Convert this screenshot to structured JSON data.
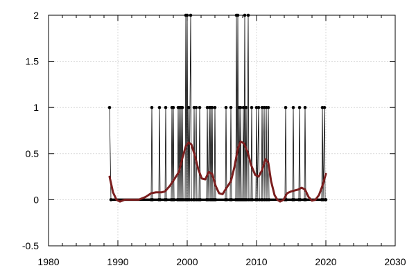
{
  "chart_data": {
    "type": "line",
    "title": "",
    "xlabel": "",
    "ylabel": "",
    "xlim": [
      1980,
      2030
    ],
    "ylim": [
      -0.5,
      2
    ],
    "grid": true,
    "legend": "none",
    "x_ticks": [
      1980,
      1990,
      2000,
      2010,
      2020,
      2030
    ],
    "y_ticks": [
      -0.5,
      0,
      0.5,
      1,
      1.5,
      2
    ],
    "x_tick_labels": [
      "1980",
      "1990",
      "2000",
      "2010",
      "2020",
      "2030"
    ],
    "y_tick_labels": [
      "-0.5",
      "0",
      "0.5",
      "1",
      "1.5",
      "2"
    ],
    "colors": {
      "series": "#000000",
      "smooth": "#7b1e1e",
      "grid": "#d8d8d8"
    },
    "series": [
      {
        "points": [
          [
            1988.8,
            1
          ],
          [
            1989.0,
            0
          ],
          [
            1994.8,
            0
          ],
          [
            1994.9,
            1
          ],
          [
            1995.0,
            0
          ],
          [
            1995.9,
            0
          ],
          [
            1996.0,
            1
          ],
          [
            1996.1,
            0
          ],
          [
            1996.8,
            0
          ],
          [
            1996.9,
            1
          ],
          [
            1997.0,
            0
          ],
          [
            1997.7,
            0
          ],
          [
            1997.8,
            1
          ],
          [
            1997.9,
            0
          ],
          [
            1998.0,
            1
          ],
          [
            1998.1,
            0
          ],
          [
            1998.6,
            0
          ],
          [
            1998.7,
            1
          ],
          [
            1998.8,
            0
          ],
          [
            1998.9,
            1
          ],
          [
            1999.0,
            0
          ],
          [
            1999.1,
            1
          ],
          [
            1999.2,
            0
          ],
          [
            1999.3,
            1
          ],
          [
            1999.4,
            0
          ],
          [
            1999.7,
            0
          ],
          [
            1999.8,
            2
          ],
          [
            1999.9,
            0
          ],
          [
            2000.0,
            2
          ],
          [
            2000.1,
            0
          ],
          [
            2000.2,
            1
          ],
          [
            2000.3,
            0
          ],
          [
            2000.5,
            2
          ],
          [
            2000.6,
            0
          ],
          [
            2000.9,
            0
          ],
          [
            2001.0,
            1
          ],
          [
            2001.1,
            0
          ],
          [
            2001.3,
            1
          ],
          [
            2001.4,
            0
          ],
          [
            2001.7,
            0
          ],
          [
            2001.8,
            1
          ],
          [
            2001.9,
            0
          ],
          [
            2002.8,
            0
          ],
          [
            2002.9,
            1
          ],
          [
            2003.0,
            0
          ],
          [
            2003.2,
            1
          ],
          [
            2003.3,
            0
          ],
          [
            2003.4,
            1
          ],
          [
            2003.5,
            0
          ],
          [
            2003.6,
            1
          ],
          [
            2003.7,
            0
          ],
          [
            2003.9,
            0
          ],
          [
            2004.0,
            1
          ],
          [
            2004.1,
            0
          ],
          [
            2005.5,
            0
          ],
          [
            2005.6,
            1
          ],
          [
            2005.7,
            0
          ],
          [
            2006.2,
            0
          ],
          [
            2006.3,
            1
          ],
          [
            2006.4,
            0
          ],
          [
            2007.0,
            0
          ],
          [
            2007.1,
            2
          ],
          [
            2007.2,
            0
          ],
          [
            2007.3,
            2
          ],
          [
            2007.4,
            0
          ],
          [
            2007.5,
            1
          ],
          [
            2007.6,
            0
          ],
          [
            2007.7,
            1
          ],
          [
            2007.8,
            0
          ],
          [
            2008.0,
            0
          ],
          [
            2008.1,
            1
          ],
          [
            2008.2,
            0
          ],
          [
            2008.3,
            2
          ],
          [
            2008.4,
            0
          ],
          [
            2008.5,
            1
          ],
          [
            2008.6,
            0
          ],
          [
            2008.8,
            2
          ],
          [
            2008.9,
            0
          ],
          [
            2009.2,
            0
          ],
          [
            2009.3,
            1
          ],
          [
            2009.4,
            0
          ],
          [
            2009.9,
            0
          ],
          [
            2010.0,
            1
          ],
          [
            2010.1,
            0
          ],
          [
            2010.3,
            1
          ],
          [
            2010.4,
            0
          ],
          [
            2010.7,
            0
          ],
          [
            2010.8,
            1
          ],
          [
            2010.9,
            0
          ],
          [
            2011.1,
            1
          ],
          [
            2011.2,
            0
          ],
          [
            2011.4,
            1
          ],
          [
            2011.5,
            0
          ],
          [
            2011.7,
            1
          ],
          [
            2011.8,
            0
          ],
          [
            2014.1,
            0
          ],
          [
            2014.2,
            1
          ],
          [
            2014.3,
            0
          ],
          [
            2015.2,
            0
          ],
          [
            2015.3,
            1
          ],
          [
            2015.4,
            0
          ],
          [
            2016.1,
            0
          ],
          [
            2016.2,
            1
          ],
          [
            2016.3,
            0
          ],
          [
            2016.9,
            0
          ],
          [
            2017.0,
            1
          ],
          [
            2017.1,
            0
          ],
          [
            2019.4,
            0
          ],
          [
            2019.5,
            1
          ],
          [
            2019.6,
            0
          ],
          [
            2019.8,
            1
          ],
          [
            2019.9,
            0
          ],
          [
            2020.0,
            0
          ]
        ]
      },
      {
        "points": [
          [
            1988.8,
            0.25
          ],
          [
            1989.3,
            0.08
          ],
          [
            1989.8,
            0.0
          ],
          [
            1990.3,
            -0.02
          ],
          [
            1991.0,
            0.0
          ],
          [
            1992.0,
            0.0
          ],
          [
            1993.0,
            0.0
          ],
          [
            1994.0,
            0.03
          ],
          [
            1994.8,
            0.07
          ],
          [
            1995.5,
            0.08
          ],
          [
            1996.3,
            0.08
          ],
          [
            1996.8,
            0.09
          ],
          [
            1997.5,
            0.15
          ],
          [
            1998.2,
            0.23
          ],
          [
            1998.8,
            0.3
          ],
          [
            1999.3,
            0.45
          ],
          [
            1999.8,
            0.58
          ],
          [
            2000.2,
            0.62
          ],
          [
            2000.6,
            0.6
          ],
          [
            2001.1,
            0.48
          ],
          [
            2001.6,
            0.33
          ],
          [
            2002.1,
            0.23
          ],
          [
            2002.6,
            0.22
          ],
          [
            2003.1,
            0.3
          ],
          [
            2003.6,
            0.28
          ],
          [
            2004.1,
            0.15
          ],
          [
            2004.6,
            0.07
          ],
          [
            2005.1,
            0.06
          ],
          [
            2005.6,
            0.12
          ],
          [
            2006.3,
            0.2
          ],
          [
            2006.8,
            0.35
          ],
          [
            2007.3,
            0.55
          ],
          [
            2007.7,
            0.63
          ],
          [
            2008.2,
            0.61
          ],
          [
            2008.7,
            0.52
          ],
          [
            2009.2,
            0.38
          ],
          [
            2009.8,
            0.27
          ],
          [
            2010.3,
            0.25
          ],
          [
            2010.8,
            0.32
          ],
          [
            2011.3,
            0.44
          ],
          [
            2011.7,
            0.4
          ],
          [
            2012.1,
            0.2
          ],
          [
            2012.6,
            0.05
          ],
          [
            2013.0,
            0.0
          ],
          [
            2013.4,
            -0.02
          ],
          [
            2013.9,
            0.0
          ],
          [
            2014.4,
            0.07
          ],
          [
            2015.0,
            0.09
          ],
          [
            2015.5,
            0.1
          ],
          [
            2016.0,
            0.11
          ],
          [
            2016.5,
            0.13
          ],
          [
            2017.0,
            0.11
          ],
          [
            2017.5,
            0.03
          ],
          [
            2018.0,
            -0.01
          ],
          [
            2018.5,
            0.0
          ],
          [
            2019.0,
            0.05
          ],
          [
            2019.5,
            0.15
          ],
          [
            2020.0,
            0.28
          ]
        ]
      }
    ]
  }
}
